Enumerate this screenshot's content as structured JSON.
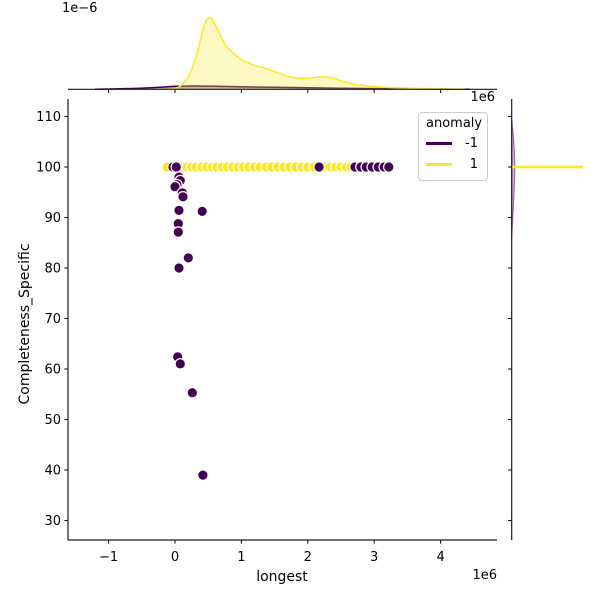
{
  "labels": {
    "xlabel": "longest",
    "ylabel": "Completeness_Specific",
    "x_offset": "1e6",
    "top_marginal_x_offset": "1e6",
    "top_marginal_density_offset": "1e−6"
  },
  "legend": {
    "title": "anomaly",
    "entries": [
      {
        "label": "-1",
        "color": "#440154"
      },
      {
        "label": "1",
        "color": "#fde725"
      }
    ]
  },
  "chart_data": {
    "type": "scatter",
    "subtype": "seaborn-jointplot with KDE marginals",
    "xlabel": "longest",
    "ylabel": "Completeness_Specific",
    "x_unit_multiplier": "1e6",
    "top_marginal_density_multiplier": "1e−6",
    "grid": false,
    "legend_position": "upper right inside main axes",
    "xlim_e6": [
      -1.62,
      4.86
    ],
    "ylim": [
      26,
      113.5
    ],
    "xticks_e6": [
      -1,
      0,
      1,
      2,
      3,
      4
    ],
    "xtick_labels": [
      "−1",
      "0",
      "1",
      "2",
      "3",
      "4"
    ],
    "yticks": [
      110,
      100,
      90,
      80,
      70,
      60,
      50,
      40,
      30
    ],
    "series": [
      {
        "name": "-1",
        "color": "#440154",
        "points_x_e6_y": [
          [
            -0.03,
            100
          ],
          [
            0.02,
            100
          ],
          [
            2.17,
            100
          ],
          [
            2.71,
            100
          ],
          [
            2.8,
            100
          ],
          [
            2.88,
            100
          ],
          [
            2.97,
            100
          ],
          [
            3.06,
            100
          ],
          [
            3.15,
            100
          ],
          [
            3.22,
            100
          ],
          [
            0.06,
            98.0
          ],
          [
            0.08,
            97.3
          ],
          [
            0.03,
            96.5
          ],
          [
            0.0,
            96.1
          ],
          [
            0.11,
            94.9
          ],
          [
            0.12,
            94.1
          ],
          [
            0.06,
            91.4
          ],
          [
            0.41,
            91.2
          ],
          [
            0.05,
            88.8
          ],
          [
            0.05,
            87.1
          ],
          [
            0.2,
            82.0
          ],
          [
            0.06,
            80.0
          ],
          [
            0.04,
            62.4
          ],
          [
            0.08,
            61.0
          ],
          [
            0.26,
            55.3
          ],
          [
            0.42,
            39.0
          ]
        ]
      },
      {
        "name": "1",
        "color": "#fde725",
        "points_x_e6_y": [
          [
            -0.12,
            100
          ],
          [
            0.06,
            100
          ],
          [
            0.12,
            100
          ],
          [
            0.18,
            100
          ],
          [
            0.25,
            100
          ],
          [
            0.32,
            100
          ],
          [
            0.4,
            100
          ],
          [
            0.48,
            100
          ],
          [
            0.56,
            100
          ],
          [
            0.63,
            100
          ],
          [
            0.71,
            100
          ],
          [
            0.79,
            100
          ],
          [
            0.87,
            100
          ],
          [
            0.95,
            100
          ],
          [
            1.03,
            100
          ],
          [
            1.11,
            100
          ],
          [
            1.2,
            100
          ],
          [
            1.28,
            100
          ],
          [
            1.37,
            100
          ],
          [
            1.46,
            100
          ],
          [
            1.55,
            100
          ],
          [
            1.64,
            100
          ],
          [
            1.73,
            100
          ],
          [
            1.82,
            100
          ],
          [
            1.91,
            100
          ],
          [
            2.0,
            100
          ],
          [
            2.09,
            100
          ],
          [
            2.26,
            100
          ],
          [
            2.34,
            100
          ],
          [
            2.42,
            100
          ],
          [
            2.5,
            100
          ],
          [
            2.58,
            100
          ],
          [
            2.65,
            100
          ]
        ]
      }
    ],
    "marginal_top_kde": [
      {
        "name": "-1",
        "color": "#440154",
        "points_x_e6_density_rel": [
          [
            -1.205,
            0
          ],
          [
            -0.828,
            0.007
          ],
          [
            -0.527,
            0.015
          ],
          [
            -0.226,
            0.029
          ],
          [
            0.0,
            0.042
          ],
          [
            0.301,
            0.046
          ],
          [
            0.602,
            0.043
          ],
          [
            0.979,
            0.035
          ],
          [
            1.431,
            0.028
          ],
          [
            1.882,
            0.024
          ],
          [
            2.485,
            0.015
          ],
          [
            3.087,
            0.01
          ],
          [
            3.69,
            0.006
          ],
          [
            4.217,
            0.002
          ],
          [
            4.443,
            0
          ]
        ]
      },
      {
        "name": "1",
        "color": "#fde725",
        "points_x_e6_density_rel": [
          [
            -0.105,
            0
          ],
          [
            0.015,
            0.01
          ],
          [
            0.105,
            0.06
          ],
          [
            0.196,
            0.16
          ],
          [
            0.271,
            0.32
          ],
          [
            0.347,
            0.55
          ],
          [
            0.407,
            0.78
          ],
          [
            0.467,
            0.96
          ],
          [
            0.512,
            1.0
          ],
          [
            0.557,
            0.98
          ],
          [
            0.617,
            0.88
          ],
          [
            0.693,
            0.73
          ],
          [
            0.768,
            0.6
          ],
          [
            0.843,
            0.53
          ],
          [
            0.949,
            0.45
          ],
          [
            1.069,
            0.38
          ],
          [
            1.175,
            0.34
          ],
          [
            1.25,
            0.32
          ],
          [
            1.34,
            0.3
          ],
          [
            1.461,
            0.26
          ],
          [
            1.596,
            0.21
          ],
          [
            1.732,
            0.17
          ],
          [
            1.882,
            0.15
          ],
          [
            2.033,
            0.157
          ],
          [
            2.184,
            0.171
          ],
          [
            2.304,
            0.171
          ],
          [
            2.425,
            0.143
          ],
          [
            2.545,
            0.102
          ],
          [
            2.711,
            0.067
          ],
          [
            2.937,
            0.042
          ],
          [
            3.238,
            0.025
          ],
          [
            3.69,
            0.011
          ],
          [
            4.142,
            0.004
          ],
          [
            4.368,
            0
          ]
        ]
      }
    ],
    "marginal_right_kde": [
      {
        "name": "-1",
        "color": "#440154",
        "spike_at_y": 100,
        "density_rel": 0.1
      },
      {
        "name": "1",
        "color": "#fde725",
        "spike_at_y": 100,
        "density_rel": 1.0
      }
    ]
  }
}
